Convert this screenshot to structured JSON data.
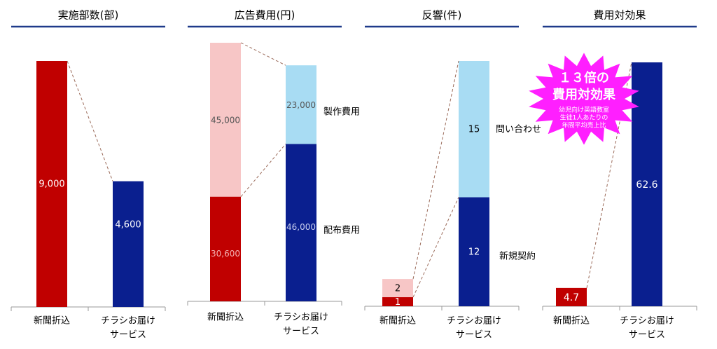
{
  "colors": {
    "red": "#c00000",
    "navy": "#0a1f8f",
    "pink": "#f7c6c6",
    "lightblue": "#a8dcf3",
    "burst": "#ff1fff",
    "dash": "#9b6b5a",
    "header_rule": "#1f3a8a"
  },
  "panels": [
    {
      "title": "実施部数(部)",
      "categories": [
        "新聞折込",
        "チラシお届け\nサービス"
      ]
    },
    {
      "title": "広告費用(円)",
      "categories": [
        "新聞折込",
        "チラシお届け\nサービス"
      ],
      "segment_labels": [
        "製作費用",
        "配布費用"
      ]
    },
    {
      "title": "反響(件)",
      "categories": [
        "新聞折込",
        "チラシお届け\nサービス"
      ],
      "segment_labels": [
        "問い合わせ",
        "新規契約"
      ]
    },
    {
      "title": "費用対効果",
      "categories": [
        "新聞折込",
        "チラシお届け\nサービス"
      ]
    }
  ],
  "chart_data": [
    {
      "type": "bar",
      "title": "実施部数(部)",
      "categories": [
        "新聞折込",
        "チラシお届けサービス"
      ],
      "values": [
        9000,
        4600
      ],
      "value_labels": [
        "9,000",
        "4,600"
      ]
    },
    {
      "type": "bar",
      "stacked": true,
      "title": "広告費用(円)",
      "categories": [
        "新聞折込",
        "チラシお届けサービス"
      ],
      "series": [
        {
          "name": "配布費用",
          "values": [
            30600,
            46000
          ],
          "value_labels": [
            "30,600",
            "46,000"
          ]
        },
        {
          "name": "製作費用",
          "values": [
            45000,
            23000
          ],
          "value_labels": [
            "45,000",
            "23,000"
          ]
        }
      ]
    },
    {
      "type": "bar",
      "stacked": true,
      "title": "反響(件)",
      "categories": [
        "新聞折込",
        "チラシお届けサービス"
      ],
      "series": [
        {
          "name": "新規契約",
          "values": [
            1,
            12
          ],
          "value_labels": [
            "1",
            "12"
          ]
        },
        {
          "name": "問い合わせ",
          "values": [
            2,
            15
          ],
          "value_labels": [
            "2",
            "15"
          ]
        }
      ]
    },
    {
      "type": "bar",
      "title": "費用対効果",
      "categories": [
        "新聞折込",
        "チラシお届けサービス"
      ],
      "values": [
        4.7,
        62.6
      ],
      "value_labels": [
        "4.7",
        "62.6"
      ],
      "annotation": {
        "headline": [
          "１３倍の",
          "費用対効果"
        ],
        "note": [
          "幼児向け英語教室",
          "生徒1人あたりの",
          "年間平均売上比"
        ]
      }
    }
  ]
}
